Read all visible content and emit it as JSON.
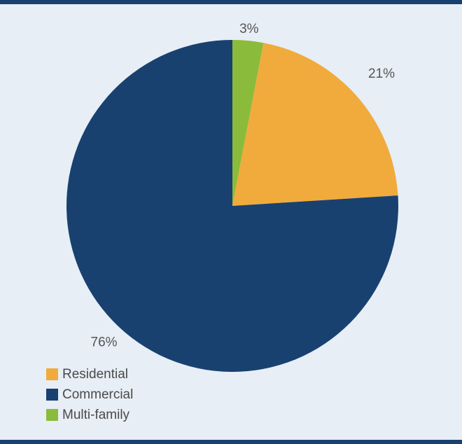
{
  "chart_data": {
    "type": "pie",
    "title": "",
    "slices": [
      {
        "name": "Multi-family",
        "value": 3,
        "label": "3%",
        "color": "#8bbb3a"
      },
      {
        "name": "Residential",
        "value": 21,
        "label": "21%",
        "color": "#f0ab3c"
      },
      {
        "name": "Commercial",
        "value": 76,
        "label": "76%",
        "color": "#184170"
      }
    ],
    "legend_placement": "bottom-left",
    "legend": [
      {
        "label": "Residential",
        "color": "#f0ab3c"
      },
      {
        "label": "Commercial",
        "color": "#184170"
      },
      {
        "label": "Multi-family",
        "color": "#8bbb3a"
      }
    ]
  }
}
